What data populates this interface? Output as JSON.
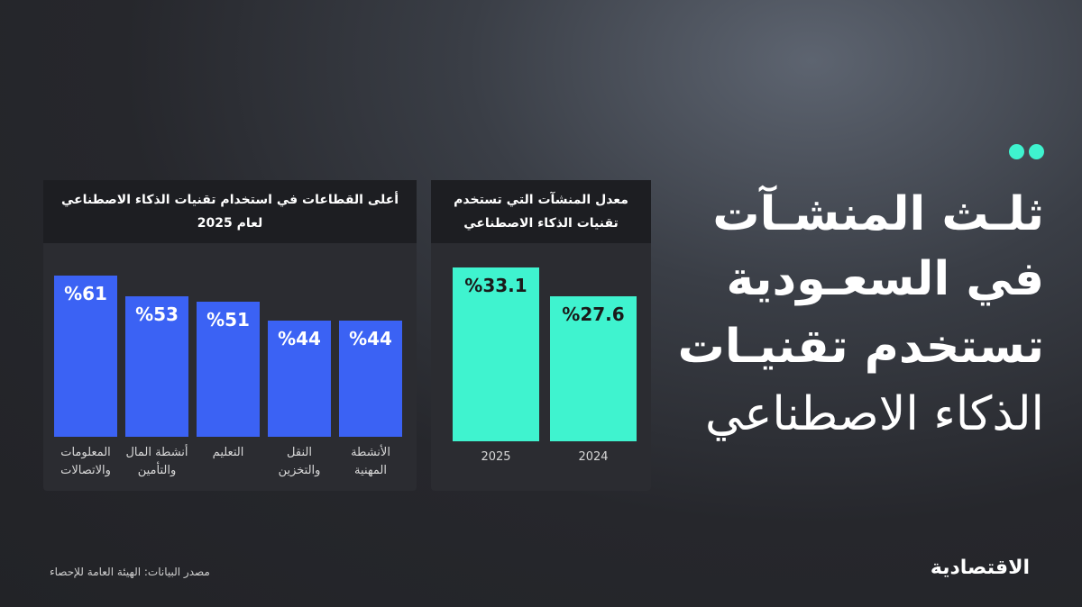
{
  "headline": [
    "ثلـث المنشـآت",
    "في السعـودية",
    "تستخدم تقنيـات",
    "الذكاء الاصطناعي"
  ],
  "source": "مصدر البيانات: الهيئة العامة للإحصاء",
  "brand": "الاقتصادية",
  "chart_data": [
    {
      "type": "bar",
      "title": "أعلى القطاعات في استخدام تقنيات الذكاء الاصطناعي لعام 2025",
      "categories": [
        "المعلومات والاتصالات",
        "أنشطة المال والتأمين",
        "التعليم",
        "النقل والتخزين",
        "الأنشطة المهنية"
      ],
      "values": [
        61,
        53,
        51,
        44,
        44
      ],
      "value_labels": [
        "%61",
        "%53",
        "%51",
        "%44",
        "%44"
      ],
      "color": "#3b62f4"
    },
    {
      "type": "bar",
      "title": "معدل المنشآت التي تستخدم تقنيات الذكاء الاصطناعي",
      "categories": [
        "2025",
        "2024"
      ],
      "values": [
        33.1,
        27.6
      ],
      "value_labels": [
        "%33.1",
        "%27.6"
      ],
      "color": "#3ff3cf"
    }
  ]
}
